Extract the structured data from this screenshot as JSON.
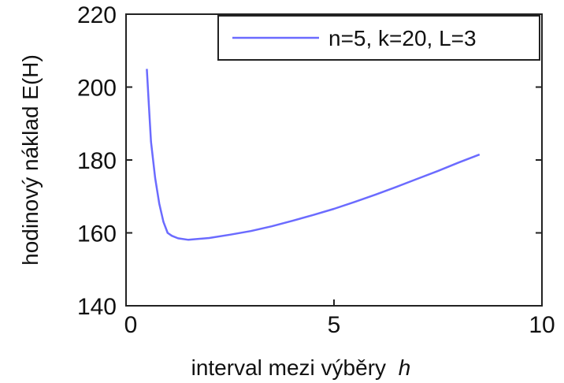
{
  "chart_data": {
    "type": "line",
    "xlabel": "interval mezi výběry",
    "xlabel_italic": "h",
    "ylabel": "hodinový náklad E(H)",
    "xlim": [
      0,
      10
    ],
    "ylim": [
      140,
      220
    ],
    "xticks": [
      0,
      5,
      10
    ],
    "yticks": [
      140,
      160,
      180,
      200,
      220
    ],
    "grid": false,
    "legend_position": "top-right",
    "series": [
      {
        "name": "n=5, k=20, L=3",
        "color": "#6b6bff",
        "x": [
          0.5,
          0.55,
          0.6,
          0.7,
          0.8,
          0.9,
          1.0,
          1.1,
          1.25,
          1.5,
          2.0,
          2.5,
          3.0,
          3.5,
          4.0,
          4.5,
          5.0,
          5.5,
          6.0,
          6.5,
          7.0,
          7.5,
          8.0,
          8.5
        ],
        "y": [
          205,
          195,
          185,
          175,
          168,
          163,
          160,
          159.2,
          158.5,
          158.1,
          158.6,
          159.5,
          160.5,
          161.8,
          163.3,
          164.9,
          166.6,
          168.5,
          170.5,
          172.6,
          174.8,
          177.0,
          179.3,
          181.5
        ]
      }
    ]
  }
}
